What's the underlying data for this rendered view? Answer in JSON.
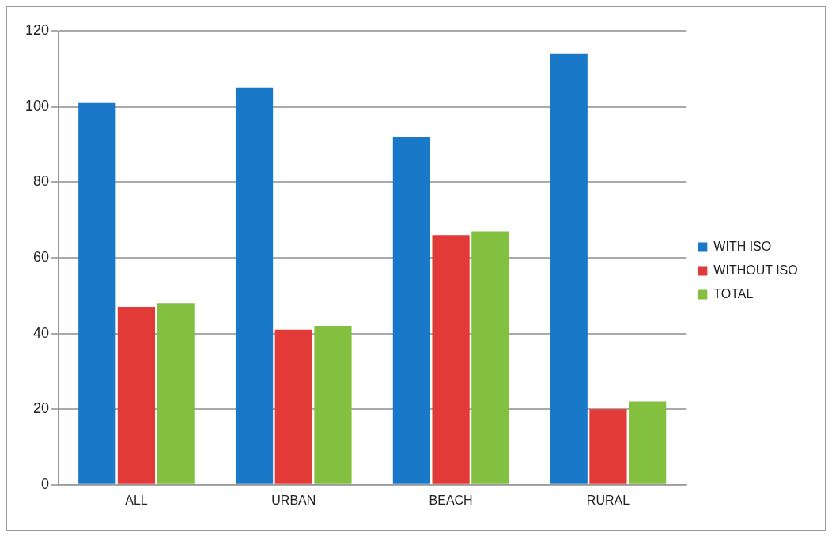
{
  "chart_data": {
    "type": "bar",
    "categories": [
      "ALL",
      "URBAN",
      "BEACH",
      "RURAL"
    ],
    "series": [
      {
        "name": "WITH ISO",
        "color": "#1a78c8",
        "values": [
          101,
          105,
          92,
          114
        ]
      },
      {
        "name": "WITHOUT ISO",
        "color": "#e23a36",
        "values": [
          47,
          41,
          66,
          20
        ]
      },
      {
        "name": "TOTAL",
        "color": "#84c040",
        "values": [
          48,
          42,
          67,
          22
        ]
      }
    ],
    "ylim": [
      0,
      120
    ],
    "yticks": [
      0,
      20,
      40,
      60,
      80,
      100,
      120
    ],
    "grid": "y",
    "legend": "right"
  }
}
